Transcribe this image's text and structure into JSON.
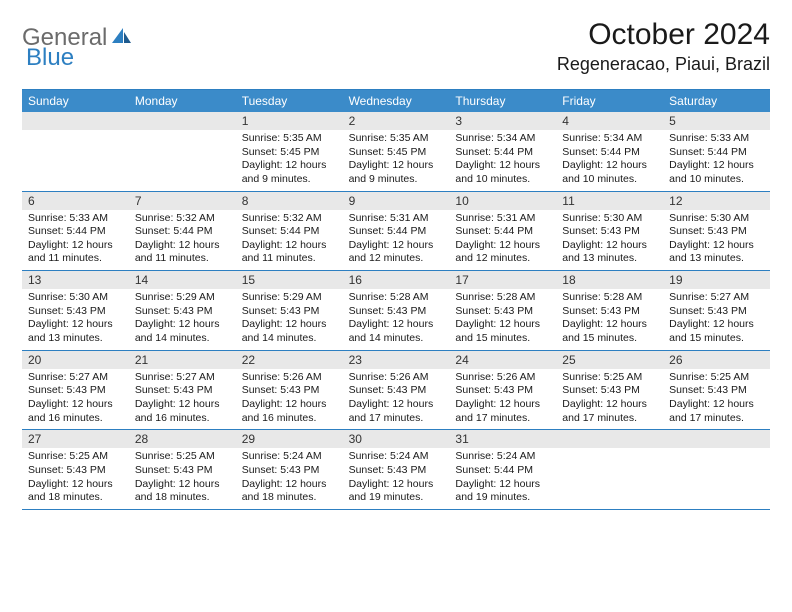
{
  "logo": {
    "word1": "General",
    "word2": "Blue"
  },
  "title": "October 2024",
  "location": "Regeneracao, Piaui, Brazil",
  "colors": {
    "header_bg": "#3b8bc9",
    "border": "#2d7fc1",
    "daynum_bg": "#e8e8e8",
    "text": "#1a1a1a",
    "logo_gray": "#6b6b6b",
    "logo_blue": "#2d7fc1"
  },
  "weekdays": [
    "Sunday",
    "Monday",
    "Tuesday",
    "Wednesday",
    "Thursday",
    "Friday",
    "Saturday"
  ],
  "weeks": [
    [
      {
        "blank": true
      },
      {
        "blank": true
      },
      {
        "n": "1",
        "sr": "5:35 AM",
        "ss": "5:45 PM",
        "dl": "12 hours and 9 minutes."
      },
      {
        "n": "2",
        "sr": "5:35 AM",
        "ss": "5:45 PM",
        "dl": "12 hours and 9 minutes."
      },
      {
        "n": "3",
        "sr": "5:34 AM",
        "ss": "5:44 PM",
        "dl": "12 hours and 10 minutes."
      },
      {
        "n": "4",
        "sr": "5:34 AM",
        "ss": "5:44 PM",
        "dl": "12 hours and 10 minutes."
      },
      {
        "n": "5",
        "sr": "5:33 AM",
        "ss": "5:44 PM",
        "dl": "12 hours and 10 minutes."
      }
    ],
    [
      {
        "n": "6",
        "sr": "5:33 AM",
        "ss": "5:44 PM",
        "dl": "12 hours and 11 minutes."
      },
      {
        "n": "7",
        "sr": "5:32 AM",
        "ss": "5:44 PM",
        "dl": "12 hours and 11 minutes."
      },
      {
        "n": "8",
        "sr": "5:32 AM",
        "ss": "5:44 PM",
        "dl": "12 hours and 11 minutes."
      },
      {
        "n": "9",
        "sr": "5:31 AM",
        "ss": "5:44 PM",
        "dl": "12 hours and 12 minutes."
      },
      {
        "n": "10",
        "sr": "5:31 AM",
        "ss": "5:44 PM",
        "dl": "12 hours and 12 minutes."
      },
      {
        "n": "11",
        "sr": "5:30 AM",
        "ss": "5:43 PM",
        "dl": "12 hours and 13 minutes."
      },
      {
        "n": "12",
        "sr": "5:30 AM",
        "ss": "5:43 PM",
        "dl": "12 hours and 13 minutes."
      }
    ],
    [
      {
        "n": "13",
        "sr": "5:30 AM",
        "ss": "5:43 PM",
        "dl": "12 hours and 13 minutes."
      },
      {
        "n": "14",
        "sr": "5:29 AM",
        "ss": "5:43 PM",
        "dl": "12 hours and 14 minutes."
      },
      {
        "n": "15",
        "sr": "5:29 AM",
        "ss": "5:43 PM",
        "dl": "12 hours and 14 minutes."
      },
      {
        "n": "16",
        "sr": "5:28 AM",
        "ss": "5:43 PM",
        "dl": "12 hours and 14 minutes."
      },
      {
        "n": "17",
        "sr": "5:28 AM",
        "ss": "5:43 PM",
        "dl": "12 hours and 15 minutes."
      },
      {
        "n": "18",
        "sr": "5:28 AM",
        "ss": "5:43 PM",
        "dl": "12 hours and 15 minutes."
      },
      {
        "n": "19",
        "sr": "5:27 AM",
        "ss": "5:43 PM",
        "dl": "12 hours and 15 minutes."
      }
    ],
    [
      {
        "n": "20",
        "sr": "5:27 AM",
        "ss": "5:43 PM",
        "dl": "12 hours and 16 minutes."
      },
      {
        "n": "21",
        "sr": "5:27 AM",
        "ss": "5:43 PM",
        "dl": "12 hours and 16 minutes."
      },
      {
        "n": "22",
        "sr": "5:26 AM",
        "ss": "5:43 PM",
        "dl": "12 hours and 16 minutes."
      },
      {
        "n": "23",
        "sr": "5:26 AM",
        "ss": "5:43 PM",
        "dl": "12 hours and 17 minutes."
      },
      {
        "n": "24",
        "sr": "5:26 AM",
        "ss": "5:43 PM",
        "dl": "12 hours and 17 minutes."
      },
      {
        "n": "25",
        "sr": "5:25 AM",
        "ss": "5:43 PM",
        "dl": "12 hours and 17 minutes."
      },
      {
        "n": "26",
        "sr": "5:25 AM",
        "ss": "5:43 PM",
        "dl": "12 hours and 17 minutes."
      }
    ],
    [
      {
        "n": "27",
        "sr": "5:25 AM",
        "ss": "5:43 PM",
        "dl": "12 hours and 18 minutes."
      },
      {
        "n": "28",
        "sr": "5:25 AM",
        "ss": "5:43 PM",
        "dl": "12 hours and 18 minutes."
      },
      {
        "n": "29",
        "sr": "5:24 AM",
        "ss": "5:43 PM",
        "dl": "12 hours and 18 minutes."
      },
      {
        "n": "30",
        "sr": "5:24 AM",
        "ss": "5:43 PM",
        "dl": "12 hours and 19 minutes."
      },
      {
        "n": "31",
        "sr": "5:24 AM",
        "ss": "5:44 PM",
        "dl": "12 hours and 19 minutes."
      },
      {
        "blank": true
      },
      {
        "blank": true
      }
    ]
  ],
  "labels": {
    "sunrise": "Sunrise:",
    "sunset": "Sunset:",
    "daylight": "Daylight:"
  }
}
